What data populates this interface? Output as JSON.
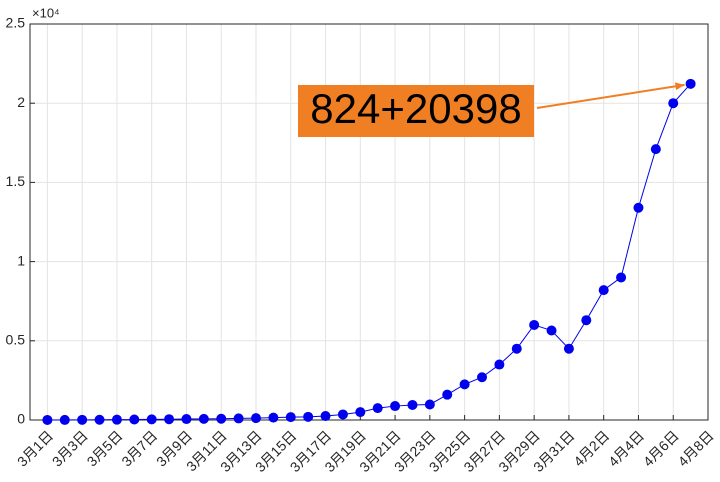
{
  "chart_data": {
    "type": "line",
    "y_multiplier_label": "×10⁴",
    "categories": [
      "3月1日",
      null,
      "3月3日",
      null,
      "3月5日",
      null,
      "3月7日",
      null,
      "3月9日",
      null,
      "3月11日",
      null,
      "3月13日",
      null,
      "3月15日",
      null,
      "3月17日",
      null,
      "3月19日",
      null,
      "3月21日",
      null,
      "3月23日",
      null,
      "3月25日",
      null,
      "3月27日",
      null,
      "3月29日",
      null,
      "3月31日",
      null,
      "4月2日",
      null,
      "4月4日",
      null,
      "4月6日",
      null,
      "4月8日"
    ],
    "series": [
      {
        "color": "#0000ee",
        "values": [
          0.0003,
          0.0005,
          0.001,
          0.0015,
          0.002,
          0.003,
          0.004,
          0.005,
          0.006,
          0.007,
          0.008,
          0.01,
          0.012,
          0.015,
          0.018,
          0.02,
          0.025,
          0.035,
          0.05,
          0.075,
          0.088,
          0.095,
          0.098,
          0.16,
          0.225,
          0.27,
          0.35,
          0.45,
          0.6,
          0.565,
          0.45,
          0.63,
          0.82,
          0.9,
          1.34,
          1.71,
          2.0,
          2.1222,
          null
        ]
      }
    ],
    "ylim": [
      0,
      2.5
    ],
    "yticks": [
      0,
      0.5,
      1,
      1.5,
      2,
      2.5
    ],
    "grid": true,
    "annotation": {
      "text": "824+20398",
      "color": "#f07f23"
    }
  }
}
